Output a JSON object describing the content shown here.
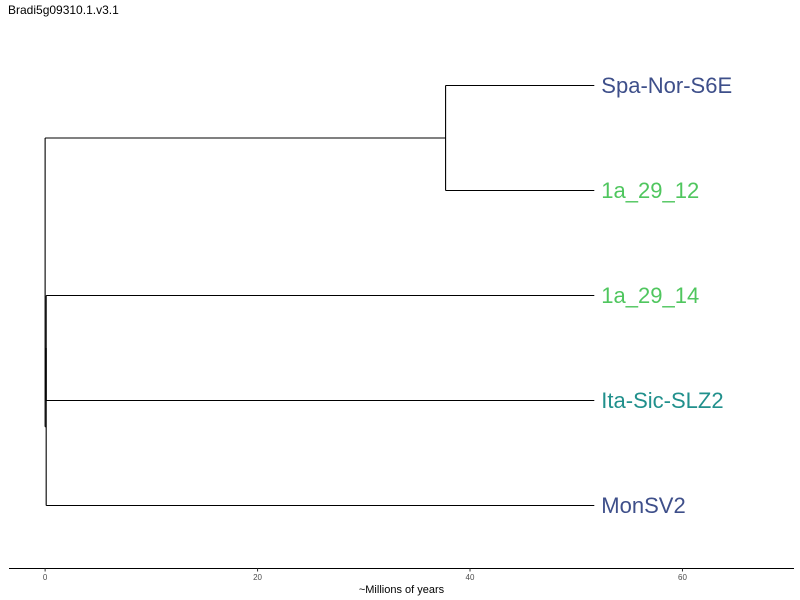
{
  "title": "Bradi5g09310.1.v3.1",
  "chart_data": {
    "type": "dendrogram",
    "xlabel": "~Millions of years",
    "xticks": [
      0,
      20,
      40,
      60
    ],
    "xlim": [
      -3.4,
      70.5
    ],
    "tips": [
      {
        "name": "Spa-Nor-S6E",
        "color": "#3e4f8a"
      },
      {
        "name": "1a_29_12",
        "color": "#4fc65e"
      },
      {
        "name": "1a_29_14",
        "color": "#4fc65e"
      },
      {
        "name": "Ita-Sic-SLZ2",
        "color": "#21908c"
      },
      {
        "name": "MonSV2",
        "color": "#3e4f8a"
      }
    ],
    "tree": {
      "depth": 0,
      "children": [
        {
          "depth": 37.7,
          "children": [
            {
              "tip": 0,
              "depth": 51.7
            },
            {
              "tip": 1,
              "depth": 51.7
            }
          ]
        },
        {
          "depth": 0.1,
          "children": [
            {
              "depth": 0.1,
              "children": [
                {
                  "tip": 2,
                  "depth": 51.7
                },
                {
                  "tip": 3,
                  "depth": 51.7
                }
              ]
            },
            {
              "tip": 4,
              "depth": 51.7
            }
          ]
        }
      ]
    }
  }
}
